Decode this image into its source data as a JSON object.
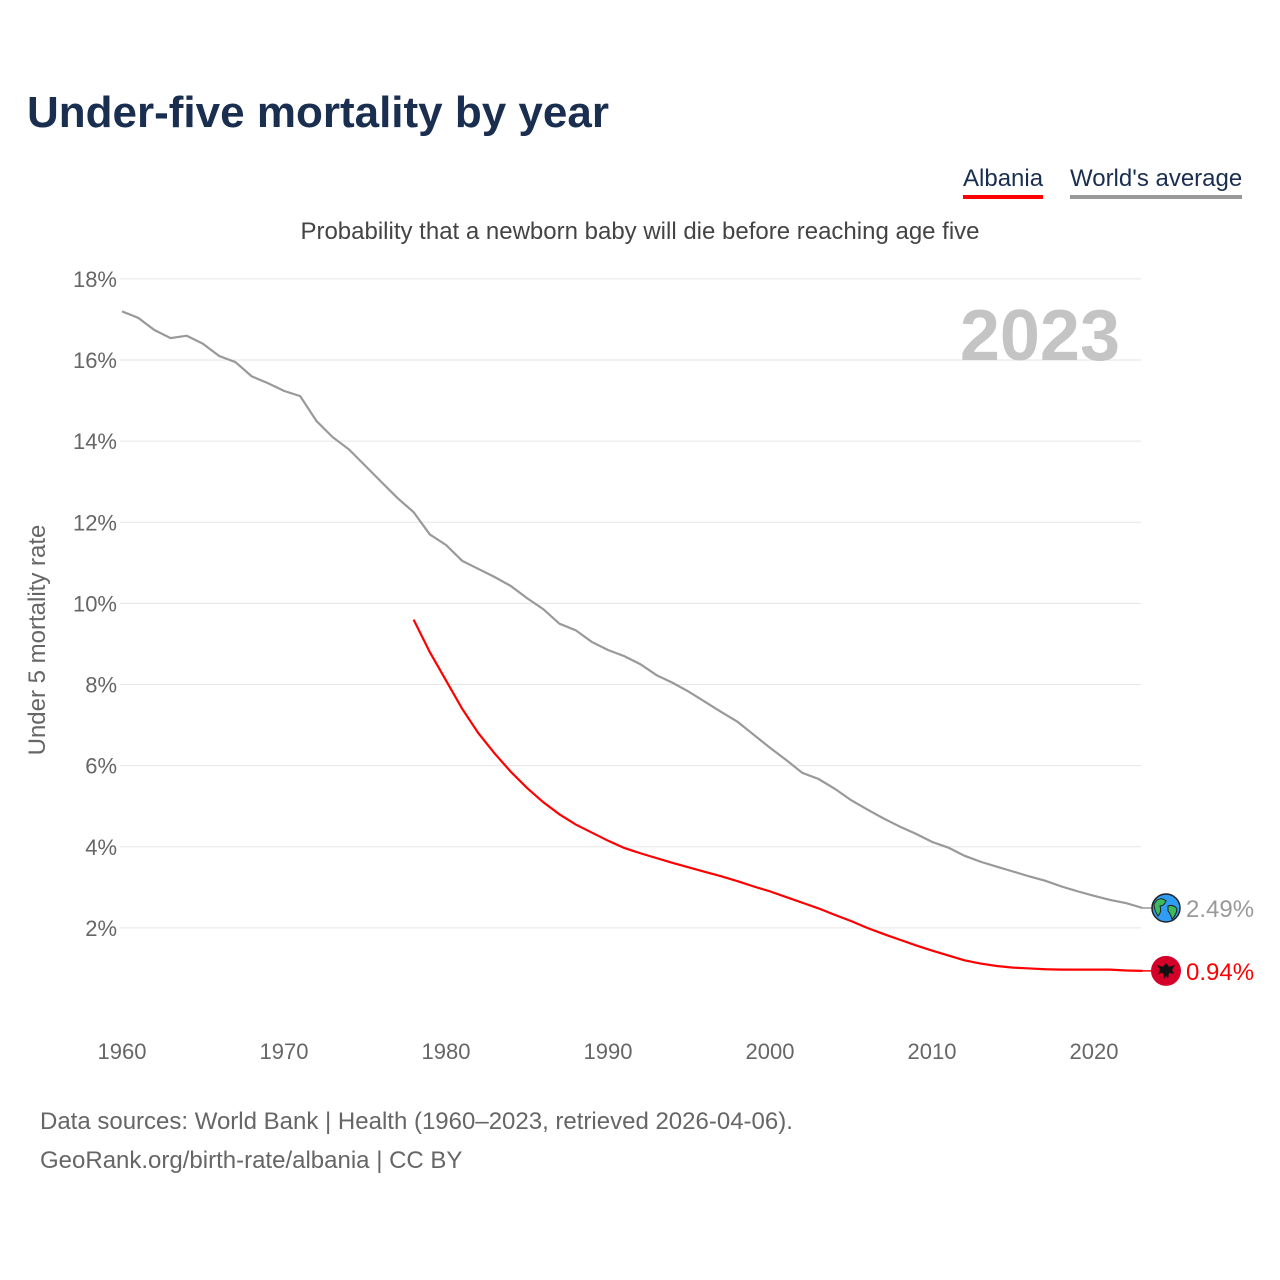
{
  "title": "Under-five mortality by year",
  "legend": [
    {
      "label": "Albania",
      "color": "#ff0000"
    },
    {
      "label": "World's average",
      "color": "#999999"
    }
  ],
  "footer": {
    "line1": "Data sources: World Bank | Health (1960–2023, retrieved 2026-04-06).",
    "line2": "GeoRank.org/birth-rate/albania | CC BY"
  },
  "chart_data": {
    "type": "line",
    "title": "Under-five mortality by year",
    "subtitle": "Probability that a newborn baby will die before reaching age five",
    "ylabel": "Under 5 mortality rate",
    "xlabel": "",
    "year_label": "2023",
    "xlim": [
      1960,
      2023
    ],
    "ylim": [
      0,
      18
    ],
    "x_ticks": [
      1960,
      1970,
      1980,
      1990,
      2000,
      2010,
      2020
    ],
    "y_ticks": [
      "2%",
      "4%",
      "6%",
      "8%",
      "10%",
      "12%",
      "14%",
      "16%",
      "18%"
    ],
    "y_tick_values": [
      2,
      4,
      6,
      8,
      10,
      12,
      14,
      16,
      18
    ],
    "grid": true,
    "series": [
      {
        "name": "World's average",
        "color": "#999999",
        "end_label": "2.49%",
        "icon": "globe-icon",
        "start_year": 1960,
        "values": [
          17.2,
          17.04,
          16.74,
          16.54,
          16.6,
          16.4,
          16.1,
          15.95,
          15.6,
          15.43,
          15.24,
          15.11,
          14.5,
          14.1,
          13.8,
          13.4,
          13.0,
          12.6,
          12.25,
          11.7,
          11.44,
          11.05,
          10.85,
          10.65,
          10.43,
          10.13,
          9.86,
          9.5,
          9.34,
          9.05,
          8.85,
          8.7,
          8.5,
          8.23,
          8.04,
          7.82,
          7.57,
          7.32,
          7.08,
          6.76,
          6.44,
          6.14,
          5.82,
          5.67,
          5.43,
          5.15,
          4.92,
          4.7,
          4.5,
          4.32,
          4.12,
          3.98,
          3.78,
          3.63,
          3.51,
          3.39,
          3.27,
          3.16,
          3.02,
          2.9,
          2.79,
          2.69,
          2.61,
          2.49
        ]
      },
      {
        "name": "Albania",
        "color": "#ff0000",
        "end_label": "0.94%",
        "icon": "albania-flag-icon",
        "start_year": 1978,
        "values": [
          9.6,
          8.8,
          8.1,
          7.4,
          6.8,
          6.3,
          5.85,
          5.45,
          5.1,
          4.8,
          4.55,
          4.35,
          4.15,
          3.97,
          3.84,
          3.72,
          3.6,
          3.49,
          3.38,
          3.27,
          3.15,
          3.02,
          2.9,
          2.76,
          2.62,
          2.48,
          2.32,
          2.17,
          2.0,
          1.85,
          1.71,
          1.57,
          1.44,
          1.32,
          1.2,
          1.12,
          1.06,
          1.02,
          1.0,
          0.98,
          0.97,
          0.97,
          0.97,
          0.97,
          0.95,
          0.94
        ]
      }
    ]
  }
}
